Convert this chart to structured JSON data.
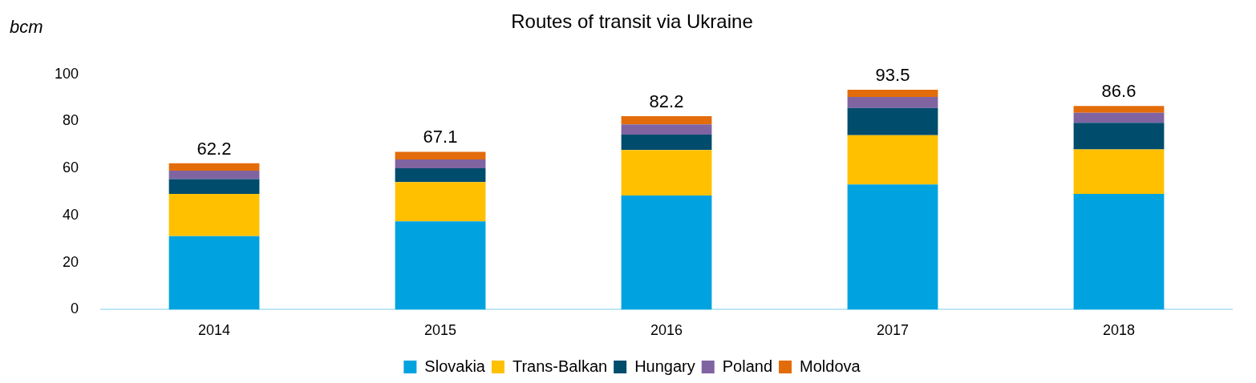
{
  "chart_data": {
    "type": "bar",
    "title": "Routes of transit via Ukraine",
    "ylabel": "bcm",
    "stacked": true,
    "categories": [
      "2014",
      "2015",
      "2016",
      "2017",
      "2018"
    ],
    "series": [
      {
        "name": "Slovakia",
        "color": "#00a3e0",
        "values": [
          31.2,
          37.5,
          48.5,
          53.2,
          49.2
        ]
      },
      {
        "name": "Trans-Balkan",
        "color": "#ffc000",
        "values": [
          18.0,
          16.7,
          19.3,
          20.9,
          18.9
        ]
      },
      {
        "name": "Hungary",
        "color": "#004c6c",
        "values": [
          6.3,
          5.9,
          6.6,
          11.6,
          11.3
        ]
      },
      {
        "name": "Poland",
        "color": "#8064a2",
        "values": [
          3.6,
          3.7,
          4.3,
          4.7,
          4.3
        ]
      },
      {
        "name": "Moldova",
        "color": "#e36c0a",
        "values": [
          3.1,
          3.3,
          3.5,
          3.1,
          2.9
        ]
      }
    ],
    "totals": [
      "62.2",
      "67.1",
      "82.2",
      "93.5",
      "86.6"
    ],
    "ylim": [
      0,
      100
    ],
    "yticks": [
      0,
      20,
      40,
      60,
      80,
      100
    ],
    "grid": false,
    "legend": "bottom"
  }
}
